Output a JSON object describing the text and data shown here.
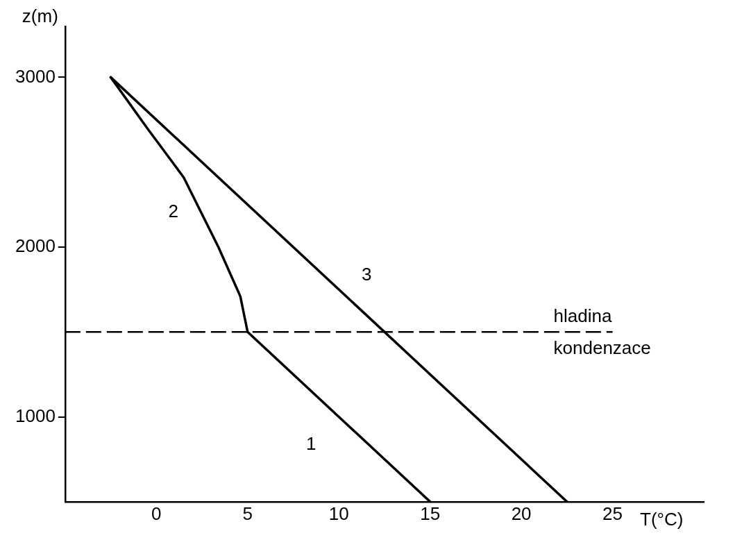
{
  "chart_data": {
    "type": "line",
    "xlabel": "T(°C)",
    "ylabel": "z(m)",
    "xlim": [
      -5,
      30
    ],
    "xticks": [
      0,
      5,
      10,
      15,
      20,
      25
    ],
    "ylim": [
      500,
      3300
    ],
    "yticks": [
      1000,
      2000,
      3000
    ],
    "grid": false,
    "legend": false,
    "marker": "none",
    "line_style": "solid",
    "series": [
      {
        "name": "1",
        "color": "#000000",
        "x": [
          15,
          5
        ],
        "values": [
          500,
          1500
        ]
      },
      {
        "name": "2",
        "color": "#000000",
        "x": [
          5,
          4.6,
          3.4,
          1.5,
          -0.5,
          -2.5
        ],
        "values": [
          1500,
          1710,
          2000,
          2410,
          2700,
          3000
        ]
      },
      {
        "name": "3",
        "color": "#000000",
        "x": [
          22.5,
          -2.5
        ],
        "values": [
          500,
          3000
        ]
      }
    ],
    "ref_lines": [
      {
        "axis": "y",
        "value": 1500,
        "label": "hladina kondenzace",
        "color": "#000000",
        "line_style": "dashed"
      }
    ]
  }
}
